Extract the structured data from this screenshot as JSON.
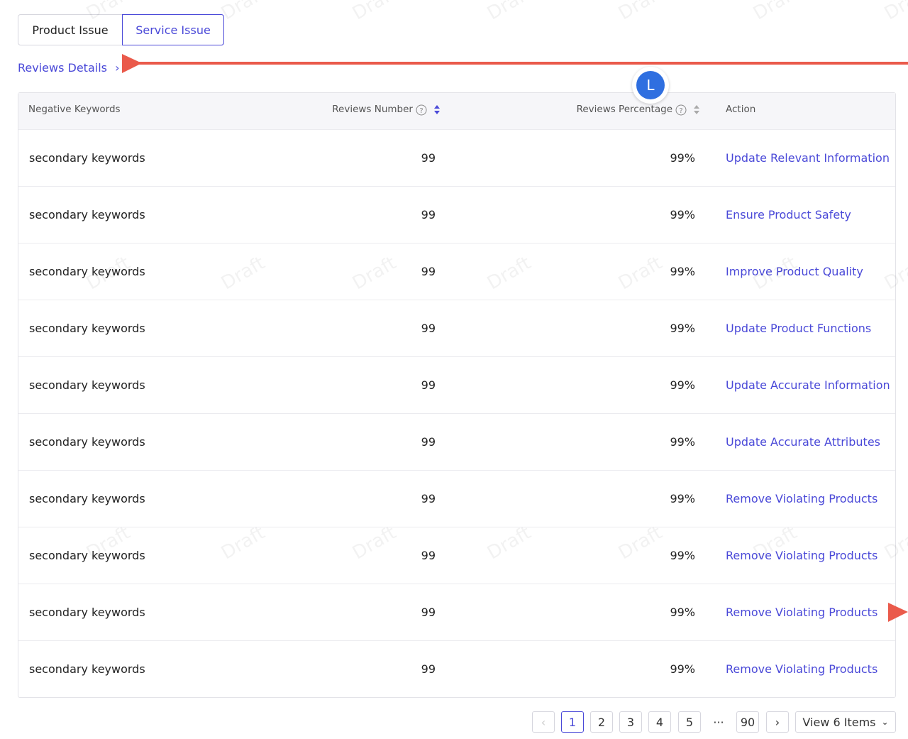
{
  "tabs": [
    "Product Issue",
    "Service Issue"
  ],
  "link": "Reviews Details",
  "avatar": "L",
  "watermark": "Draft",
  "table": {
    "headers": [
      "Negative Keywords",
      "Reviews Number",
      "Reviews Percentage",
      "Action"
    ],
    "rows": [
      [
        "secondary keywords",
        "99",
        "99%",
        "Update Relevant Information"
      ],
      [
        "secondary keywords",
        "99",
        "99%",
        "Ensure Product Safety"
      ],
      [
        "secondary keywords",
        "99",
        "99%",
        "Improve Product Quality"
      ],
      [
        "secondary keywords",
        "99",
        "99%",
        "Update Product Functions"
      ],
      [
        "secondary keywords",
        "99",
        "99%",
        "Update Accurate Information"
      ],
      [
        "secondary keywords",
        "99",
        "99%",
        "Update Accurate Attributes"
      ],
      [
        "secondary keywords",
        "99",
        "99%",
        "Remove Violating Products"
      ],
      [
        "secondary keywords",
        "99",
        "99%",
        "Remove Violating Products"
      ],
      [
        "secondary keywords",
        "99",
        "99%",
        "Remove Violating Products"
      ],
      [
        "secondary keywords",
        "99",
        "99%",
        "Remove Violating Products"
      ]
    ]
  },
  "pagination": {
    "pages": [
      "1",
      "2",
      "3",
      "4",
      "5",
      "···",
      "90"
    ],
    "page_size": "View 6 Items"
  }
}
